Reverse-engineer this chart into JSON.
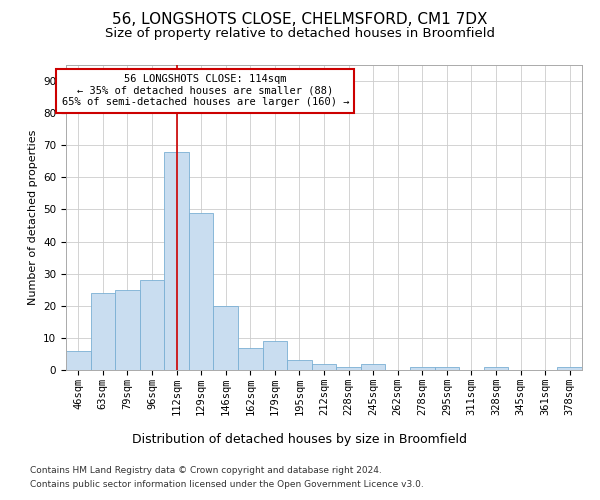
{
  "title1": "56, LONGSHOTS CLOSE, CHELMSFORD, CM1 7DX",
  "title2": "Size of property relative to detached houses in Broomfield",
  "xlabel": "Distribution of detached houses by size in Broomfield",
  "ylabel": "Number of detached properties",
  "categories": [
    "46sqm",
    "63sqm",
    "79sqm",
    "96sqm",
    "112sqm",
    "129sqm",
    "146sqm",
    "162sqm",
    "179sqm",
    "195sqm",
    "212sqm",
    "228sqm",
    "245sqm",
    "262sqm",
    "278sqm",
    "295sqm",
    "311sqm",
    "328sqm",
    "345sqm",
    "361sqm",
    "378sqm"
  ],
  "values": [
    6,
    24,
    25,
    28,
    68,
    49,
    20,
    7,
    9,
    3,
    2,
    1,
    2,
    0,
    1,
    1,
    0,
    1,
    0,
    0,
    1
  ],
  "bar_color": "#c9ddf0",
  "bar_edge_color": "#7aafd4",
  "vline_x_index": 4,
  "vline_color": "#cc0000",
  "ylim": [
    0,
    95
  ],
  "yticks": [
    0,
    10,
    20,
    30,
    40,
    50,
    60,
    70,
    80,
    90
  ],
  "annotation_text": "56 LONGSHOTS CLOSE: 114sqm\n← 35% of detached houses are smaller (88)\n65% of semi-detached houses are larger (160) →",
  "annotation_box_color": "#ffffff",
  "annotation_box_edge_color": "#cc0000",
  "footer1": "Contains HM Land Registry data © Crown copyright and database right 2024.",
  "footer2": "Contains public sector information licensed under the Open Government Licence v3.0.",
  "background_color": "#ffffff",
  "grid_color": "#cccccc",
  "title1_fontsize": 11,
  "title2_fontsize": 9.5,
  "xlabel_fontsize": 9,
  "ylabel_fontsize": 8,
  "tick_fontsize": 7.5,
  "annot_fontsize": 7.5,
  "footer_fontsize": 6.5
}
